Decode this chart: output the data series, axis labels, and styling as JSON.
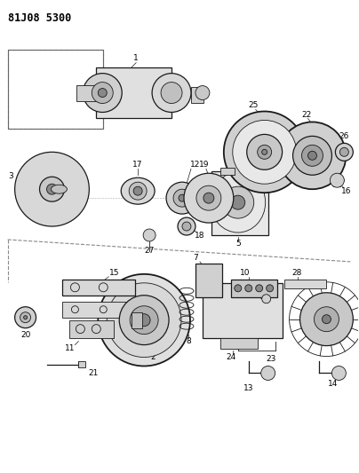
{
  "title": "81J08 5300",
  "background_color": "#ffffff",
  "line_color": "#1a1a1a",
  "fig_width": 4.04,
  "fig_height": 5.33,
  "dpi": 100
}
